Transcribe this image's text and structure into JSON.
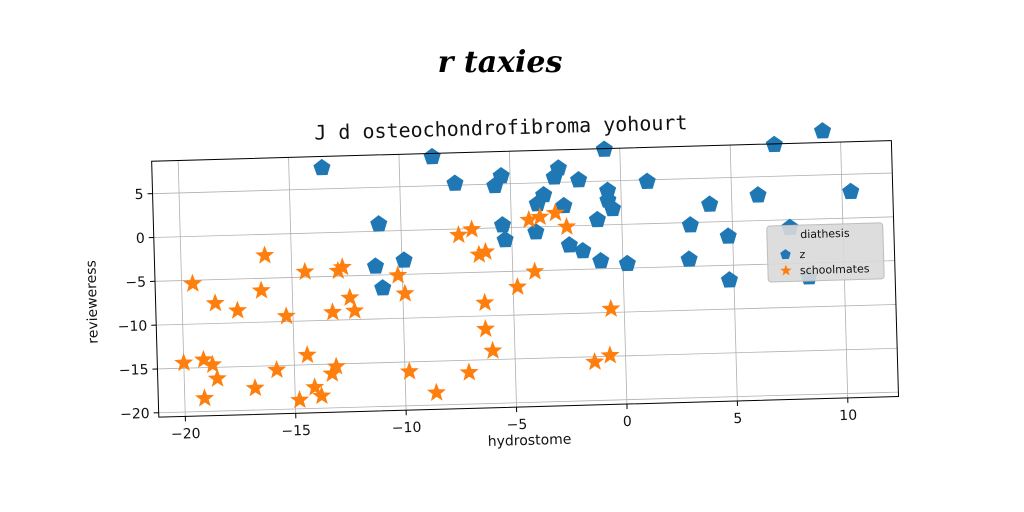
{
  "figure": {
    "suptitle": "r taxies"
  },
  "chart_data": {
    "type": "scatter",
    "title": "J d osteochondrofibroma yohourt",
    "xlabel": "hydrostome",
    "ylabel": "revieweress",
    "xlim": [
      -21.2,
      12.3
    ],
    "ylim": [
      -20.5,
      8.7
    ],
    "xticks": [
      -20,
      -15,
      -10,
      -5,
      0,
      5,
      10
    ],
    "yticks": [
      -20,
      -15,
      -10,
      -5,
      0,
      5
    ],
    "grid": true,
    "legend": {
      "title": "diathesis",
      "placement": "center-right"
    },
    "series": [
      {
        "name": "z",
        "marker": "pentagon",
        "color": "#1f77b4",
        "points": [
          [
            -13.5,
            7.4
          ],
          [
            -8.5,
            8.3
          ],
          [
            -7.5,
            5.2
          ],
          [
            -5.7,
            4.8
          ],
          [
            -5.4,
            5.9
          ],
          [
            -3.0,
            5.6
          ],
          [
            -2.8,
            6.6
          ],
          [
            -3.5,
            3.6
          ],
          [
            -3.8,
            2.6
          ],
          [
            -2.6,
            2.3
          ],
          [
            -1.9,
            5.2
          ],
          [
            -0.7,
            8.6
          ],
          [
            -0.6,
            3.9
          ],
          [
            -0.6,
            2.8
          ],
          [
            -0.4,
            1.8
          ],
          [
            1.2,
            4.8
          ],
          [
            -1.1,
            0.6
          ],
          [
            -5.4,
            0.3
          ],
          [
            -5.3,
            -1.4
          ],
          [
            -3.9,
            -0.6
          ],
          [
            -2.4,
            -2.2
          ],
          [
            -1.8,
            -2.9
          ],
          [
            -1.0,
            -4.1
          ],
          [
            0.2,
            -4.5
          ],
          [
            -11.0,
            0.8
          ],
          [
            -9.9,
            -3.4
          ],
          [
            -11.2,
            -4.0
          ],
          [
            -10.9,
            -6.5
          ],
          [
            3.1,
            -0.3
          ],
          [
            4.0,
            2.0
          ],
          [
            4.8,
            -1.7
          ],
          [
            6.2,
            2.9
          ],
          [
            7.0,
            8.6
          ],
          [
            9.2,
            10.0
          ],
          [
            10.4,
            3.0
          ],
          [
            7.6,
            -0.9
          ],
          [
            8.4,
            -6.6
          ],
          [
            3.0,
            -4.2
          ],
          [
            4.8,
            -6.7
          ]
        ]
      },
      {
        "name": "schoolmates",
        "marker": "star",
        "color": "#ff7f0e",
        "points": [
          [
            -19.5,
            -5.4
          ],
          [
            -20.0,
            -14.4
          ],
          [
            -19.1,
            -14.1
          ],
          [
            -18.7,
            -14.7
          ],
          [
            -18.5,
            -16.3
          ],
          [
            -19.1,
            -18.5
          ],
          [
            -18.5,
            -7.7
          ],
          [
            -17.5,
            -8.6
          ],
          [
            -16.8,
            -17.5
          ],
          [
            -16.4,
            -6.4
          ],
          [
            -16.2,
            -2.4
          ],
          [
            -15.8,
            -15.5
          ],
          [
            -15.3,
            -9.4
          ],
          [
            -14.8,
            -19.0
          ],
          [
            -14.4,
            -13.9
          ],
          [
            -14.1,
            -17.6
          ],
          [
            -13.8,
            -18.6
          ],
          [
            -13.3,
            -16.1
          ],
          [
            -13.1,
            -15.3
          ],
          [
            -13.2,
            -9.1
          ],
          [
            -12.9,
            -4.4
          ],
          [
            -12.7,
            -4.0
          ],
          [
            -12.4,
            -7.5
          ],
          [
            -12.2,
            -9.0
          ],
          [
            -14.4,
            -4.4
          ],
          [
            -10.2,
            -5.1
          ],
          [
            -9.9,
            -7.2
          ],
          [
            -9.8,
            -16.1
          ],
          [
            -8.6,
            -18.6
          ],
          [
            -7.4,
            -0.7
          ],
          [
            -6.8,
            -0.1
          ],
          [
            -6.5,
            -3.0
          ],
          [
            -6.2,
            -2.7
          ],
          [
            -6.3,
            -8.5
          ],
          [
            -6.3,
            -11.5
          ],
          [
            -6.0,
            -14.0
          ],
          [
            -7.1,
            -16.4
          ],
          [
            -4.8,
            -6.8
          ],
          [
            -4.2,
            0.8
          ],
          [
            -3.7,
            1.1
          ],
          [
            -3.0,
            1.5
          ],
          [
            -2.5,
            -0.1
          ],
          [
            -4.0,
            -5.1
          ],
          [
            -1.4,
            -15.6
          ],
          [
            -0.7,
            -14.9
          ],
          [
            -0.6,
            -9.6
          ]
        ]
      }
    ]
  }
}
